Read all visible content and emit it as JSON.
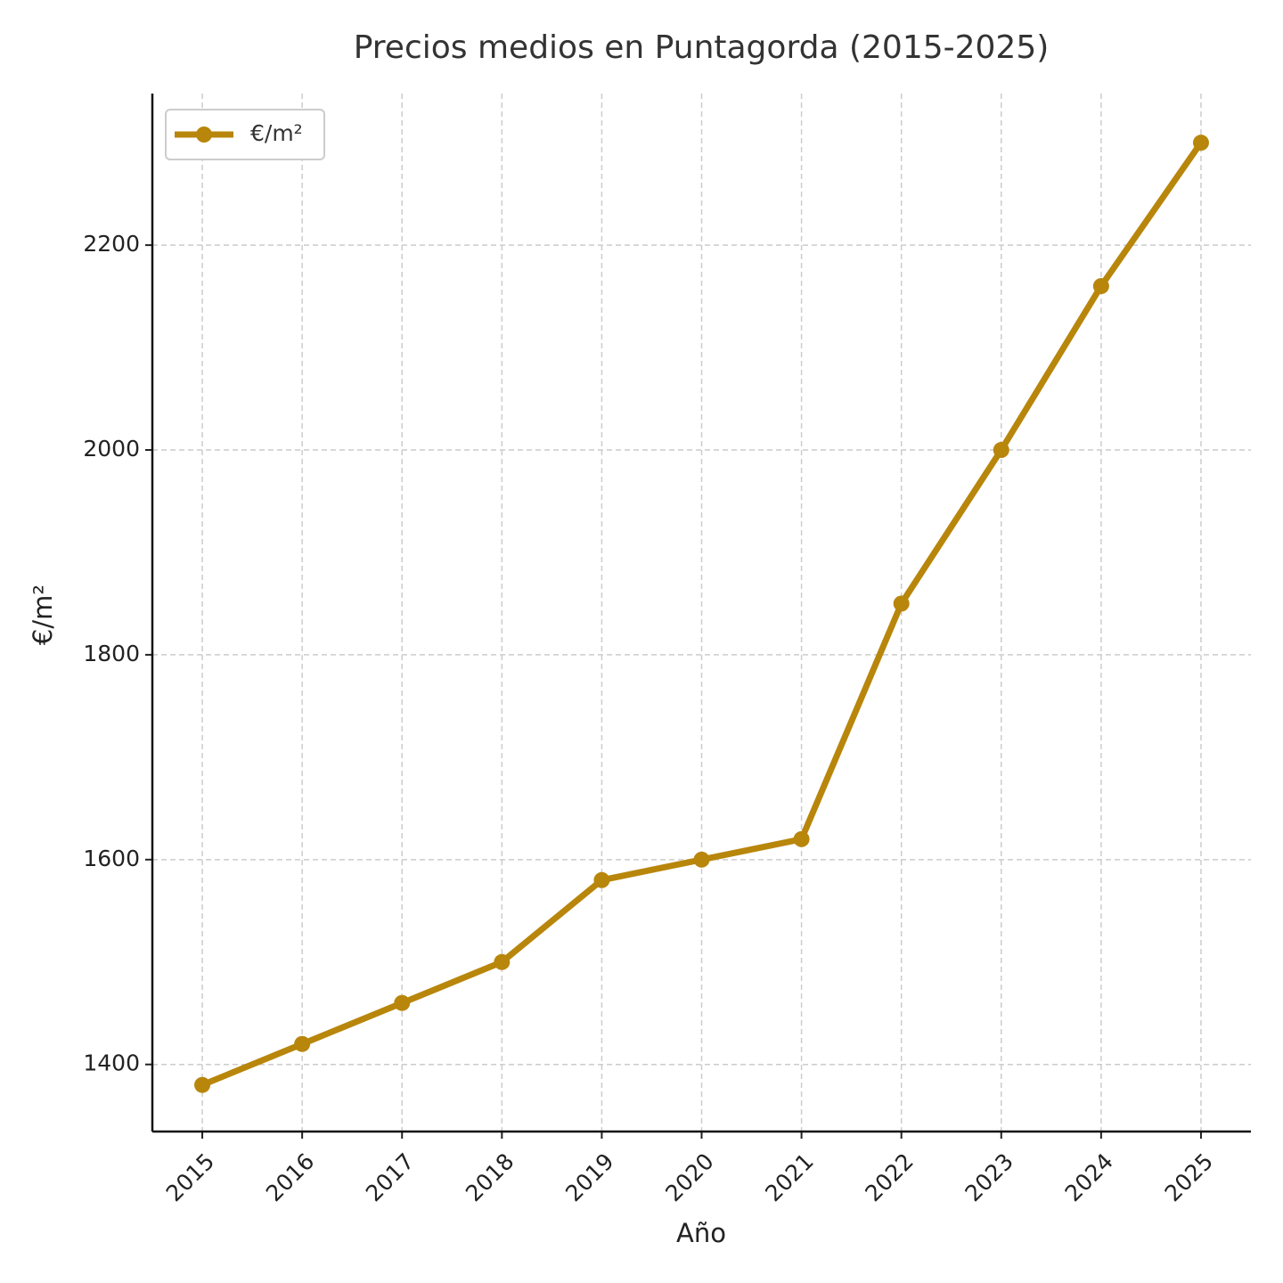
{
  "chart_data": {
    "type": "line",
    "title": "Precios medios en Puntagorda (2015-2025)",
    "x_label": "Año",
    "y_label": "€/m²",
    "x": [
      2015,
      2016,
      2017,
      2018,
      2019,
      2020,
      2021,
      2022,
      2023,
      2024,
      2025
    ],
    "series": [
      {
        "name": "€/m²",
        "color": "#b8860b",
        "values": [
          1380,
          1420,
          1460,
          1500,
          1580,
          1600,
          1620,
          1850,
          2000,
          2160,
          2300
        ]
      }
    ],
    "xlim": [
      2014.5,
      2025.5
    ],
    "xticks": [
      2015,
      2016,
      2017,
      2018,
      2019,
      2020,
      2021,
      2022,
      2023,
      2024,
      2025
    ],
    "ylim": [
      1334.5,
      2348
    ],
    "yticks": [
      1400,
      1600,
      1800,
      2000,
      2200
    ],
    "grid": true,
    "legend": "upper-left"
  }
}
